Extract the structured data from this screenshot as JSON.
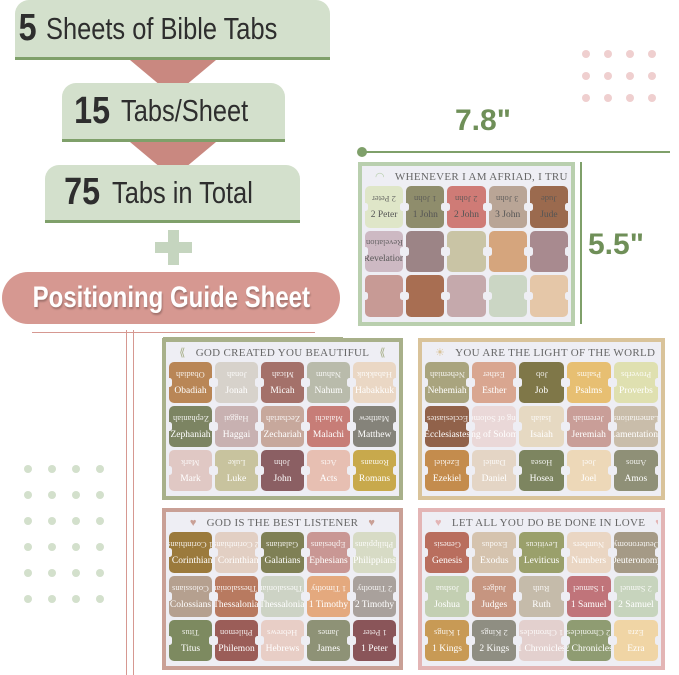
{
  "banners": [
    {
      "number": "5",
      "text": "Sheets of Bible Tabs"
    },
    {
      "number": "15",
      "text": "Tabs/Sheet"
    },
    {
      "number": "75",
      "text": "Tabs in Total"
    }
  ],
  "guide_label": "Positioning Guide Sheet",
  "dimensions": {
    "width": "7.8\"",
    "height": "5.5\""
  },
  "colors": {
    "green": "#7fa06a",
    "banner": "#d3e0cc",
    "pink": "#d69891",
    "arrow": "#c98880",
    "dimension": "#6f8f58"
  },
  "sheets": [
    {
      "title": "WHENEVER I AM AFRIAD, I TRUST IN YOU",
      "ornament": "◠",
      "border": "#b9cfae",
      "tabs": [
        "2 Peter",
        "1 John",
        "2 John",
        "3 John",
        "Jude",
        "Revelation",
        "",
        "",
        "",
        "",
        "",
        "",
        "",
        "",
        ""
      ],
      "tab_colors": [
        "#dfe6c8",
        "#8f8d6c",
        "#cf7b76",
        "#b9a596",
        "#9b6a4e",
        "#cdb9c3",
        "#9c8486",
        "#c9c4a5",
        "#d5a57d",
        "#a88a8f",
        "#c79a95",
        "#a86e52",
        "#c5a9ac",
        "#cbd6c4",
        "#e5c7a8"
      ]
    },
    {
      "title": "GOD CREATED YOU BEAUTIFUL",
      "ornament": "⟪",
      "border": "#a8b08a",
      "tabs": [
        "Obadiah",
        "Jonah",
        "Micah",
        "Nahum",
        "Habakkuk",
        "Zephaniah",
        "Haggai",
        "Zechariah",
        "Malachi",
        "Matthew",
        "Mark",
        "Luke",
        "John",
        "Acts",
        "Romans"
      ],
      "tab_colors": [
        "#b98656",
        "#d7d2cb",
        "#a4716a",
        "#b9bbab",
        "#ead7c4",
        "#7c8462",
        "#c8b1b1",
        "#c7a89c",
        "#c77d77",
        "#85837a",
        "#e0c8c4",
        "#c8c39e",
        "#8b5f63",
        "#e7bfb2",
        "#c8a94c"
      ]
    },
    {
      "title": "YOU ARE THE LIGHT OF THE WORLD",
      "ornament": "☀",
      "border": "#d9c39a",
      "tabs": [
        "Nehemiah",
        "Esther",
        "Job",
        "Psalms",
        "Proverbs",
        "Ecclesiastes",
        "Song of Solomon",
        "Isaiah",
        "Jeremiah",
        "Lamentations",
        "Ezekiel",
        "Daniel",
        "Hosea",
        "Joel",
        "Amos"
      ],
      "tab_colors": [
        "#a9a47e",
        "#d9a690",
        "#7f7748",
        "#e7bf72",
        "#dfe0b0",
        "#91624a",
        "#ead8d8",
        "#e6d9c2",
        "#c99e98",
        "#c9bdaa",
        "#c48c4d",
        "#e4d5c5",
        "#7d8560",
        "#edd8b8",
        "#8f9077"
      ]
    },
    {
      "title": "GOD IS THE BEST LISTENER",
      "ornament": "♥",
      "border": "#c9a096",
      "tabs": [
        "1 Corinthians",
        "2 Corinthians",
        "Galatians",
        "Ephesians",
        "Philippians",
        "Colossians",
        "1 Thessalonians",
        "2 Thessalonians",
        "1 Timothy",
        "2 Timothy",
        "Titus",
        "Philemon",
        "Hebrews",
        "James",
        "1 Peter"
      ],
      "tab_colors": [
        "#9b7a3c",
        "#e2cfc3",
        "#7f8055",
        "#c99794",
        "#d7dbc5",
        "#b5a08f",
        "#b87a60",
        "#cdd3c5",
        "#e4a97e",
        "#a9a19c",
        "#7d8a60",
        "#9b5d58",
        "#e8cec6",
        "#8e9276",
        "#8a5559"
      ]
    },
    {
      "title": "LET ALL YOU DO BE DONE IN LOVE",
      "ornament": "♥",
      "border": "#e3b5b5",
      "tabs": [
        "Genesis",
        "Exodus",
        "Leviticus",
        "Numbers",
        "Deuteronomy",
        "Joshua",
        "Judges",
        "Ruth",
        "1 Samuel",
        "2 Samuel",
        "1 Kings",
        "2 Kings",
        "1 Chronicles",
        "2 Chronicles",
        "Ezra"
      ],
      "tab_colors": [
        "#b96e5e",
        "#d5c3ae",
        "#9aa06b",
        "#ead6c3",
        "#a59a86",
        "#c3cfb2",
        "#c69580",
        "#c5bbaa",
        "#c0747a",
        "#c7d4bd",
        "#c89a55",
        "#8f8e82",
        "#e3d0ce",
        "#8f9c72",
        "#f0d5a5"
      ]
    }
  ]
}
